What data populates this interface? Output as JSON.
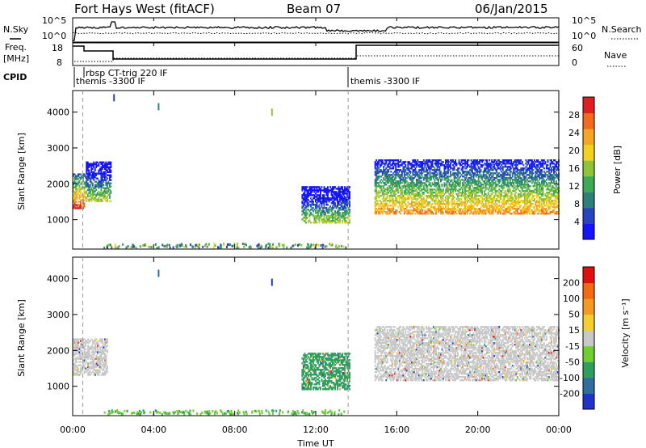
{
  "header": {
    "station": "Fort Hays West (fitACF)",
    "beam": "Beam 07",
    "date": "06/Jan/2015"
  },
  "noise_panel": {
    "left_label": "N.Sky",
    "right_label": "N.Search",
    "left_ticks": [
      "10^5",
      "10^0"
    ],
    "right_ticks": [
      "10^5",
      "10^0"
    ]
  },
  "freq_panel": {
    "left_label_line1": "Freq.",
    "left_label_line2": "[MHz]",
    "left_ticks": [
      "18",
      "8"
    ],
    "right_label": "Nave",
    "right_ticks": [
      "60",
      "0"
    ]
  },
  "cpid_panel": {
    "label": "CPID",
    "programs": [
      {
        "name": "rbsp CT-trig 220 IF",
        "start_hour": 0.5
      },
      {
        "name": "themis -3300 IF",
        "start_hour": 0.0
      },
      {
        "name": "themis -3300 IF",
        "start_hour": 13.6
      }
    ]
  },
  "x_axis": {
    "label": "Time UT",
    "ticks": [
      "00:00",
      "04:00",
      "08:00",
      "12:00",
      "16:00",
      "20:00",
      "00:00"
    ]
  },
  "power_panel": {
    "ylabel": "Slant Range [km]",
    "yticks": [
      "1000",
      "2000",
      "3000",
      "4000"
    ],
    "colorbar_label": "Power [dB]",
    "colorbar_ticks": [
      "4",
      "8",
      "12",
      "16",
      "20",
      "24",
      "28"
    ],
    "colors": [
      "#1414ff",
      "#2845c0",
      "#2f7f7a",
      "#3faa55",
      "#8fc33a",
      "#f2d21e",
      "#f5a623",
      "#f26b1d",
      "#e02020"
    ]
  },
  "velocity_panel": {
    "ylabel": "Slant Range [km]",
    "yticks": [
      "1000",
      "2000",
      "3000",
      "4000"
    ],
    "colorbar_label": "Velocity [m s⁻¹]",
    "colorbar_ticks": [
      "200",
      "100",
      "50",
      "15",
      "-15",
      "-50",
      "-100",
      "-200"
    ],
    "colors": [
      "#2035c8",
      "#2f6f9f",
      "#2f9f5f",
      "#70cf30",
      "#c8c8c8",
      "#f3cf30",
      "#f39a20",
      "#f36a10",
      "#e01010"
    ]
  },
  "chart_data": {
    "type": "heatmap",
    "x_unit": "hours UT",
    "xlim": [
      0,
      24
    ],
    "y_unit": "km",
    "ylim": [
      180,
      4600
    ],
    "dashed_time_markers": [
      0.5,
      13.6
    ],
    "panels": [
      {
        "name": "Power",
        "unit": "dB",
        "range": [
          0,
          30
        ],
        "regions": [
          {
            "t0": 0.0,
            "t1": 0.65,
            "r0": 1300,
            "r1": 2250,
            "value_mean": 17
          },
          {
            "t0": 0.65,
            "t1": 1.9,
            "r0": 1500,
            "r1": 2600,
            "value_mean": 6
          },
          {
            "t0": 11.3,
            "t1": 13.7,
            "r0": 900,
            "r1": 1900,
            "value_mean": 5
          },
          {
            "t0": 14.9,
            "t1": 24.0,
            "r0": 1150,
            "r1": 2650,
            "value_mean": 12
          }
        ],
        "sparse_points": [
          {
            "t": 4.2,
            "r": 4050,
            "v": 8
          },
          {
            "t": 9.8,
            "r": 3900,
            "v": 14
          },
          {
            "t": 2.0,
            "r": 4300,
            "v": 6
          }
        ]
      },
      {
        "name": "Velocity",
        "unit": "m s-1",
        "range": [
          -200,
          200
        ],
        "regions": [
          {
            "t0": 0.0,
            "t1": 1.7,
            "r0": 1300,
            "r1": 2300,
            "value_mean": 0
          },
          {
            "t0": 11.3,
            "t1": 13.7,
            "r0": 900,
            "r1": 1900,
            "value_mean": -80
          },
          {
            "t0": 14.9,
            "t1": 24.0,
            "r0": 1150,
            "r1": 2650,
            "value_mean": 0
          }
        ],
        "sparse_points": [
          {
            "t": 4.2,
            "r": 4050,
            "v": -150
          },
          {
            "t": 9.8,
            "r": 3800,
            "v": -180
          }
        ]
      }
    ]
  }
}
